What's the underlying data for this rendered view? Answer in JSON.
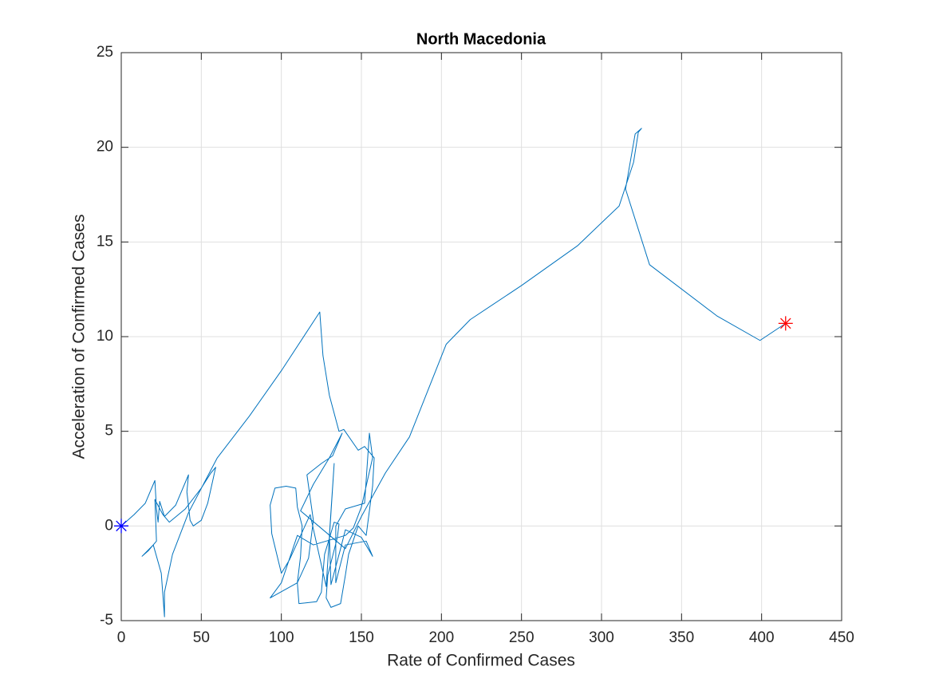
{
  "chart_data": {
    "type": "line",
    "title": "North Macedonia",
    "x_label": "Rate of Confirmed Cases",
    "y_label": "Acceleration of Confirmed Cases",
    "xlim": [
      0,
      450
    ],
    "ylim": [
      -5,
      25
    ],
    "xticks": [
      0,
      50,
      100,
      150,
      200,
      250,
      300,
      350,
      400,
      450
    ],
    "yticks": [
      -5,
      0,
      5,
      10,
      15,
      20,
      25
    ],
    "grid": true,
    "series": [
      {
        "color": "#0072bd",
        "x": [
          0,
          8,
          15,
          21,
          22,
          23,
          24,
          27,
          34,
          42,
          41,
          43,
          45,
          50,
          54,
          59,
          56,
          50,
          40,
          30,
          26,
          21,
          22,
          17,
          13,
          20,
          25,
          27,
          27,
          32,
          42,
          60,
          80,
          100,
          124,
          126,
          130,
          136,
          139,
          148,
          152,
          158,
          157,
          153,
          148,
          142,
          140,
          137,
          131,
          128,
          129,
          135,
          136,
          133,
          127,
          125,
          122,
          111,
          110,
          112,
          113,
          110,
          109,
          103,
          96,
          93,
          94,
          100,
          105,
          118,
          128,
          133,
          130,
          131,
          137,
          140,
          150,
          157,
          153,
          140,
          134,
          134,
          134,
          140,
          152,
          155,
          157,
          150,
          145,
          140,
          120,
          110,
          100,
          93,
          110,
          117,
          120,
          116,
          125,
          132,
          138,
          130,
          125,
          120,
          112,
          140,
          150,
          165,
          180,
          203,
          218,
          250,
          285,
          311,
          320,
          323,
          325,
          321,
          315,
          330,
          372,
          399,
          415
        ],
        "values": [
          0,
          0.6,
          1.2,
          2.4,
          0.9,
          0.2,
          1.3,
          0.5,
          1.1,
          2.7,
          1.8,
          0.3,
          0,
          0.3,
          1.2,
          3.1,
          2.8,
          2,
          0.9,
          0.2,
          0.6,
          1.4,
          -0.8,
          -1.3,
          -1.6,
          -1,
          -2.5,
          -4.8,
          -3.5,
          -1.5,
          0.7,
          3.6,
          5.8,
          8.2,
          11.3,
          9,
          6.9,
          5,
          5.1,
          4,
          4.2,
          3.6,
          2.1,
          -0.5,
          0,
          -1.5,
          -2.6,
          -4.1,
          -4.3,
          -3.8,
          -2.6,
          -0.6,
          0.1,
          0.2,
          -1.5,
          -3.5,
          -4,
          -4.1,
          -3,
          -1.6,
          0,
          1,
          2,
          2.1,
          2,
          1.1,
          -0.4,
          -2.5,
          -1.8,
          0.6,
          -3.2,
          3.3,
          -0.5,
          -3.1,
          -1.2,
          -0.2,
          -0.6,
          -1.6,
          -0.8,
          -1,
          -3,
          -2.9,
          0,
          0.9,
          1.2,
          4.9,
          3.6,
          1,
          -0.1,
          -0.5,
          -1,
          -0.5,
          -3,
          -3.8,
          -3,
          -1.7,
          0.3,
          2.7,
          3.3,
          3.7,
          4.9,
          3.6,
          2.9,
          2.2,
          0.8,
          -1.2,
          0.5,
          2.8,
          4.7,
          9.6,
          10.9,
          12.7,
          14.8,
          16.9,
          19.2,
          20.8,
          21,
          20.7,
          17.8,
          13.8,
          11.1,
          9.8,
          10.7
        ]
      },
      {
        "color": "#0000ff",
        "marker": "*",
        "x": [
          0
        ],
        "values": [
          0
        ]
      },
      {
        "color": "#ff0000",
        "marker": "*",
        "x": [
          415
        ],
        "values": [
          10.7
        ]
      }
    ]
  }
}
